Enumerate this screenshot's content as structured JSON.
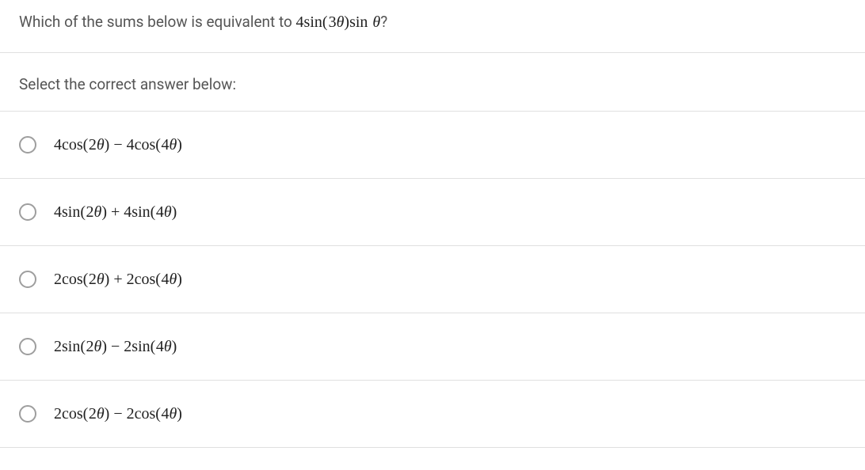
{
  "question": {
    "prefix": "Which of the sums below is equivalent to ",
    "expr_coeff": "4",
    "expr_fn1": "sin",
    "expr_arg1_open": "(",
    "expr_arg1_num": "3",
    "expr_arg1_var": "θ",
    "expr_arg1_close": ")",
    "expr_fn2": "sin",
    "expr_arg2_var": "θ",
    "suffix": "?"
  },
  "prompt": "Select the correct answer below:",
  "options": [
    {
      "t1_coeff": "4",
      "t1_fn": "cos",
      "t1_open": "(",
      "t1_num": "2",
      "t1_var": "θ",
      "t1_close": ")",
      "op": " − ",
      "t2_coeff": "4",
      "t2_fn": "cos",
      "t2_open": "(",
      "t2_num": "4",
      "t2_var": "θ",
      "t2_close": ")"
    },
    {
      "t1_coeff": "4",
      "t1_fn": "sin",
      "t1_open": "(",
      "t1_num": "2",
      "t1_var": "θ",
      "t1_close": ")",
      "op": " + ",
      "t2_coeff": "4",
      "t2_fn": "sin",
      "t2_open": "(",
      "t2_num": "4",
      "t2_var": "θ",
      "t2_close": ")"
    },
    {
      "t1_coeff": "2",
      "t1_fn": "cos",
      "t1_open": "(",
      "t1_num": "2",
      "t1_var": "θ",
      "t1_close": ")",
      "op": " + ",
      "t2_coeff": "2",
      "t2_fn": "cos",
      "t2_open": "(",
      "t2_num": "4",
      "t2_var": "θ",
      "t2_close": ")"
    },
    {
      "t1_coeff": "2",
      "t1_fn": "sin",
      "t1_open": "(",
      "t1_num": "2",
      "t1_var": "θ",
      "t1_close": ")",
      "op": " − ",
      "t2_coeff": "2",
      "t2_fn": "sin",
      "t2_open": "(",
      "t2_num": "4",
      "t2_var": "θ",
      "t2_close": ")"
    },
    {
      "t1_coeff": "2",
      "t1_fn": "cos",
      "t1_open": "(",
      "t1_num": "2",
      "t1_var": "θ",
      "t1_close": ")",
      "op": " − ",
      "t2_coeff": "2",
      "t2_fn": "cos",
      "t2_open": "(",
      "t2_num": "4",
      "t2_var": "θ",
      "t2_close": ")"
    }
  ]
}
